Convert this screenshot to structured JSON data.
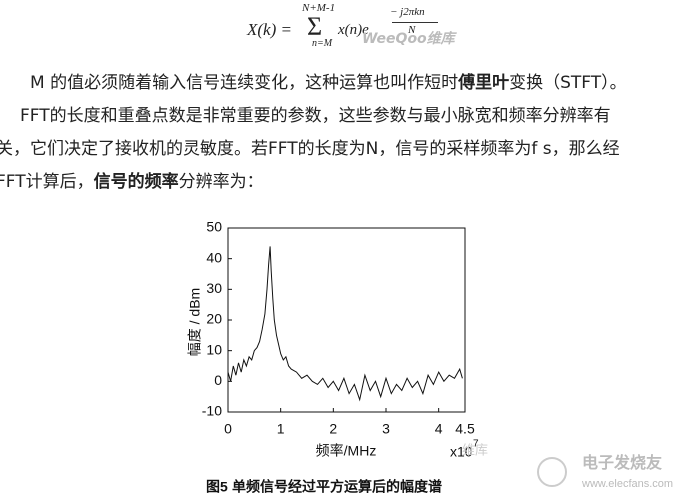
{
  "formula": {
    "lhs": "X(k) =",
    "sum_upper": "N+M-1",
    "sum_lower": "n=M",
    "term": "x(n)e",
    "exp_num": "− j2πkn",
    "exp_den": "N"
  },
  "paragraphs": [
    [
      {
        "text": "M 的值必须随着输入信号连续变化，这种运算也叫作短时",
        "bold": false
      },
      {
        "text": "傅里叶",
        "bold": true
      },
      {
        "text": "变换（STFT）。",
        "bold": false
      }
    ],
    [
      {
        "text": "FFT的长度和重叠点数是非常重要的参数，这些参数与最小脉宽和频率分辨率有",
        "bold": false
      }
    ],
    [
      {
        "text": "关，它们决定了接收机的灵敏度。若FFT的长度为N，信号的采样频率为f s，那么经",
        "bold": false
      }
    ],
    [
      {
        "text": "FFT计算后，",
        "bold": false
      },
      {
        "text": "信号的频率",
        "bold": true
      },
      {
        "text": "分辨率为：",
        "bold": false
      }
    ]
  ],
  "chart_data": {
    "type": "line",
    "xlabel": "频率/MHz",
    "ylabel": "幅度 / dBm",
    "x_multiplier": "x10",
    "x_multiplier_exp": "7",
    "color": "#111111",
    "x": [
      0,
      0.05,
      0.1,
      0.15,
      0.2,
      0.25,
      0.3,
      0.35,
      0.4,
      0.45,
      0.5,
      0.55,
      0.6,
      0.65,
      0.7,
      0.74,
      0.77,
      0.8,
      0.82,
      0.85,
      0.88,
      0.92,
      0.96,
      1.0,
      1.05,
      1.1,
      1.15,
      1.2,
      1.3,
      1.4,
      1.5,
      1.6,
      1.7,
      1.8,
      1.9,
      2.0,
      2.1,
      2.2,
      2.3,
      2.4,
      2.5,
      2.6,
      2.7,
      2.8,
      2.9,
      3.0,
      3.1,
      3.2,
      3.3,
      3.4,
      3.5,
      3.6,
      3.7,
      3.8,
      3.9,
      4.0,
      4.1,
      4.2,
      4.3,
      4.4,
      4.45
    ],
    "values": [
      3,
      0,
      5,
      2,
      6,
      3,
      7,
      5,
      8,
      7,
      10,
      11,
      13,
      17,
      22,
      30,
      38,
      44,
      36,
      27,
      20,
      15,
      12,
      9,
      7,
      8,
      5,
      4,
      3,
      1,
      2,
      0,
      -1,
      1,
      -2,
      0,
      -3,
      1,
      -4,
      -1,
      -6,
      2,
      -3,
      0,
      -5,
      1,
      -4,
      -1,
      -3,
      1,
      -2,
      0,
      -4,
      2,
      -1,
      3,
      0,
      2,
      1,
      4,
      1
    ],
    "xlim": [
      0,
      4.5
    ],
    "xticks": [
      0,
      1,
      2,
      3,
      4,
      4.5
    ],
    "ylim": [
      -10,
      50
    ],
    "yticks": [
      -10,
      0,
      10,
      20,
      30,
      40,
      50
    ]
  },
  "caption": {
    "label": "图5",
    "text": "单频信号经过平方运算后的幅度谱"
  },
  "watermarks": {
    "top": "WeeQoo维库",
    "middle": "维库",
    "bottom": "电子发烧友",
    "url": "www.elecfans.com"
  }
}
